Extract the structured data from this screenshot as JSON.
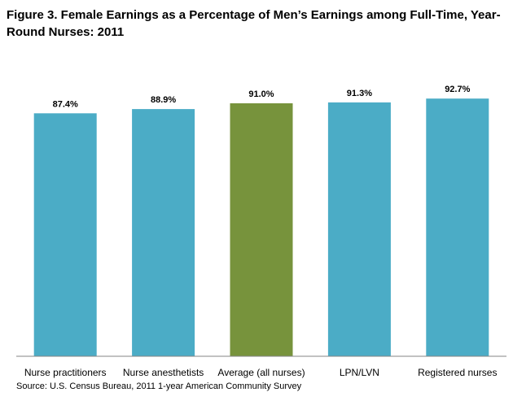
{
  "chart_data": {
    "type": "bar",
    "title": "Figure 3. Female Earnings as a Percentage of Men’s Earnings among Full-Time, Year-Round Nurses: 2011",
    "categories": [
      "Nurse practitioners",
      "Nurse anesthetists",
      "Average (all nurses)",
      "LPN/LVN",
      "Registered nurses"
    ],
    "values": [
      87.4,
      88.9,
      91.0,
      91.3,
      92.7
    ],
    "value_labels": [
      "87.4%",
      "88.9%",
      "91.0%",
      "91.3%",
      "92.7%"
    ],
    "highlight_category": "Average (all nurses)",
    "unit": "%",
    "xlabel": "",
    "ylabel": "",
    "ylim": [
      0,
      100
    ],
    "grid": false,
    "source": "Source: U.S. Census Bureau, 2011 1-year American Community Survey"
  },
  "colors": {
    "bar": "#4bacc6",
    "highlight": "#77933c",
    "axis": "#868686",
    "text": "#000000"
  }
}
